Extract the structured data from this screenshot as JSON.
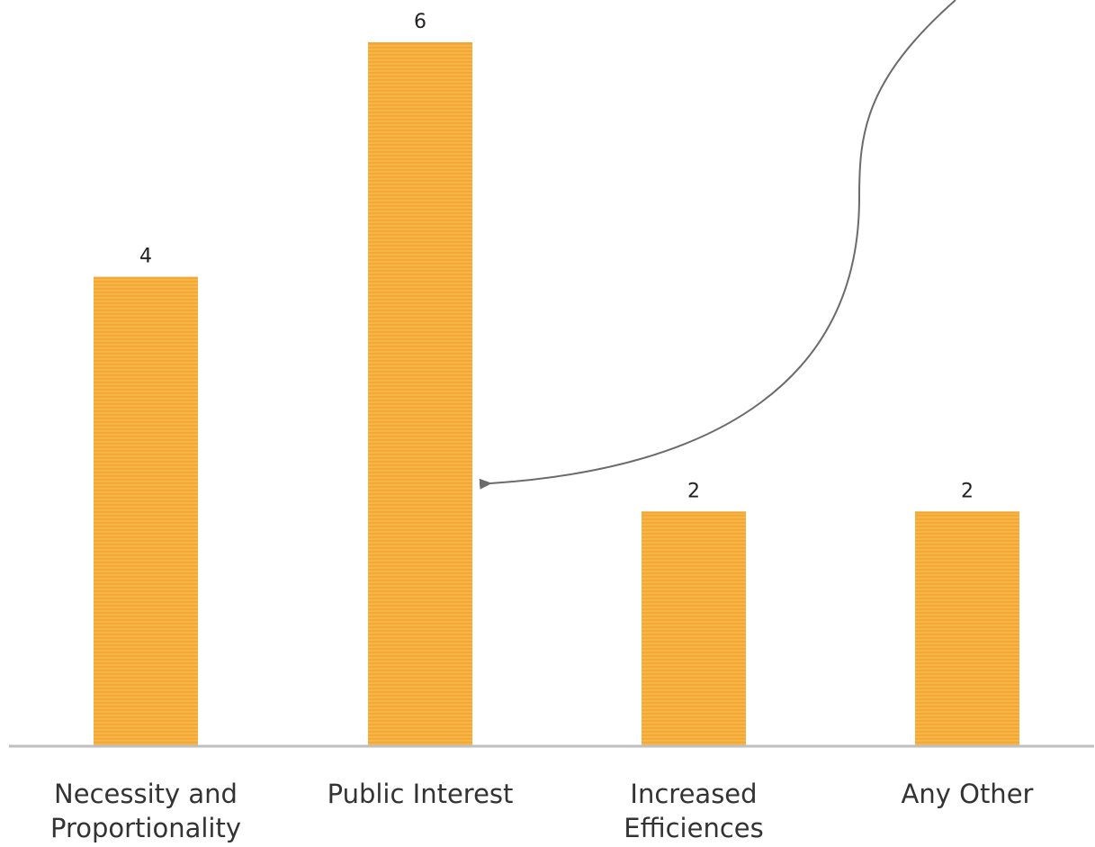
{
  "chart_data": {
    "type": "bar",
    "categories": [
      [
        "Necessity and",
        "Proportionality"
      ],
      [
        "Public Interest"
      ],
      [
        "Increased",
        "Efficiences"
      ],
      [
        "Any Other"
      ]
    ],
    "values": [
      4,
      6,
      2,
      2
    ],
    "data_labels": [
      "4",
      "6",
      "2",
      "2"
    ],
    "title": "",
    "xlabel": "",
    "ylabel": "",
    "ylim": [
      0,
      6
    ],
    "grid": false,
    "legend": "none",
    "annotation": "curved arrow pointing to Public Interest bar",
    "colors": {
      "bar_fill": "#F7B548",
      "bar_stripe": "#F3A632",
      "axis": "#bfbfbf",
      "arrow": "#6b6b6b"
    }
  }
}
